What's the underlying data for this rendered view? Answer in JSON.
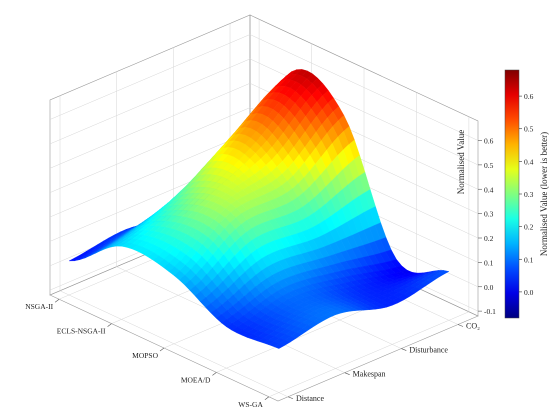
{
  "chart_data": {
    "type": "surface3d",
    "title": "",
    "x_axis": {
      "label": "",
      "categories": [
        "NSGA-II",
        "ECLS-NSGA-II",
        "MOPSO",
        "MOEA/D",
        "WS-GA"
      ]
    },
    "y_axis": {
      "label": "",
      "categories": [
        "Distance",
        "Makespan",
        "Disturbance",
        "CO₂"
      ]
    },
    "z_axis": {
      "label": "Normalised Value",
      "ticks": [
        "-0.1",
        "0.0",
        "0.1",
        "0.2",
        "0.3",
        "0.4",
        "0.5",
        "0.6"
      ],
      "range": [
        -0.12,
        0.68
      ]
    },
    "colorbar": {
      "label": "Normalised Value (lower is better)",
      "ticks": [
        "0.0",
        "0.1",
        "0.2",
        "0.3",
        "0.4",
        "0.5",
        "0.6"
      ],
      "range": [
        -0.08,
        0.68
      ],
      "colormap": "jet"
    },
    "grid": true,
    "values": [
      [
        0.02,
        0.05,
        0.01,
        0.08
      ],
      [
        0.18,
        0.27,
        0.44,
        0.6
      ],
      [
        0.16,
        0.32,
        0.35,
        0.52
      ],
      [
        0.05,
        0.11,
        0.08,
        0.03
      ],
      [
        0.06,
        0.1,
        0.04,
        0.08
      ]
    ]
  }
}
